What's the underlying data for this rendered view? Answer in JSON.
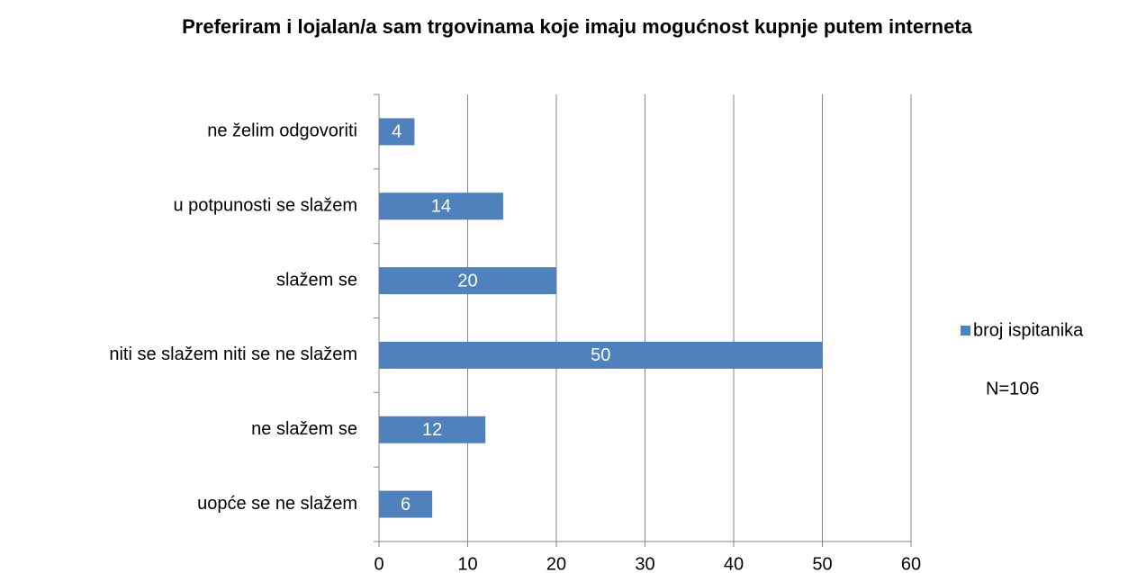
{
  "chart_data": {
    "type": "bar",
    "orientation": "horizontal",
    "title": "Preferiram i lojalan/a sam trgovinama koje imaju mogućnost kupnje putem interneta",
    "categories": [
      "ne želim odgovoriti",
      "u potpunosti se slažem",
      "slažem se",
      "niti se slažem niti se ne slažem",
      "ne slažem se",
      "uopće se ne slažem"
    ],
    "series": [
      {
        "name": "broj ispitanika",
        "color": "#4f81bd",
        "values": [
          4,
          14,
          20,
          50,
          12,
          6
        ]
      }
    ],
    "xlim": [
      0,
      60
    ],
    "xticks": [
      0,
      10,
      20,
      30,
      40,
      50,
      60
    ],
    "grid": true,
    "legend": "right",
    "annotation": "N=106"
  }
}
